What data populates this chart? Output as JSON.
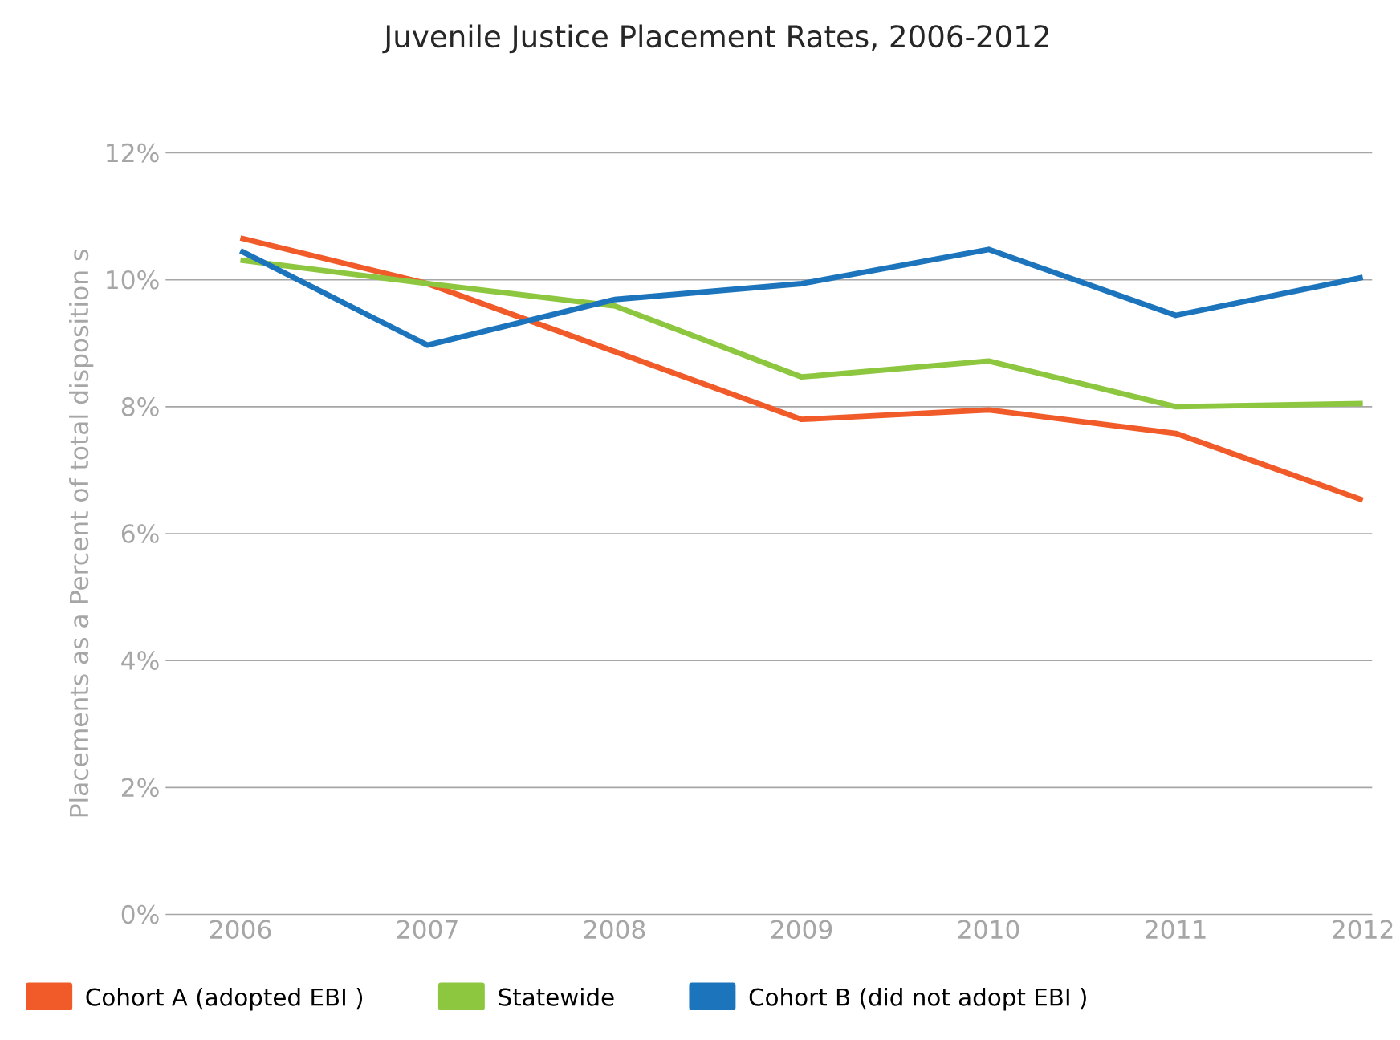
{
  "chart_data": {
    "type": "line",
    "title": "Juvenile Justice Placement Rates, 2006-2012",
    "ylabel": "Placements as a Percent of total disposition s",
    "categories": [
      "2006",
      "2007",
      "2008",
      "2009",
      "2010",
      "2011",
      "2012"
    ],
    "series": [
      {
        "name": "Cohort A (adopted EBI )",
        "color": "#f15a29",
        "values": [
          10.66,
          9.94,
          8.87,
          7.8,
          7.95,
          7.58,
          6.53
        ]
      },
      {
        "name": "Statewide",
        "color": "#8dc63f",
        "values": [
          10.31,
          9.94,
          9.59,
          8.47,
          8.72,
          8.0,
          8.05
        ]
      },
      {
        "name": "Cohort B (did not adopt EBI )",
        "color": "#1c75bc",
        "values": [
          10.46,
          8.97,
          9.69,
          9.94,
          10.48,
          9.44,
          10.04
        ]
      }
    ],
    "ylim": [
      0,
      12
    ],
    "yticks": [
      {
        "value": 0,
        "label": "0%"
      },
      {
        "value": 2,
        "label": "2%"
      },
      {
        "value": 4,
        "label": "4%"
      },
      {
        "value": 6,
        "label": "6%"
      },
      {
        "value": 8,
        "label": "8%"
      },
      {
        "value": 10,
        "label": "10%"
      },
      {
        "value": 12,
        "label": "12%"
      }
    ],
    "grid": "y",
    "legend": "bottom",
    "marker": "none",
    "line_style": "solid"
  }
}
